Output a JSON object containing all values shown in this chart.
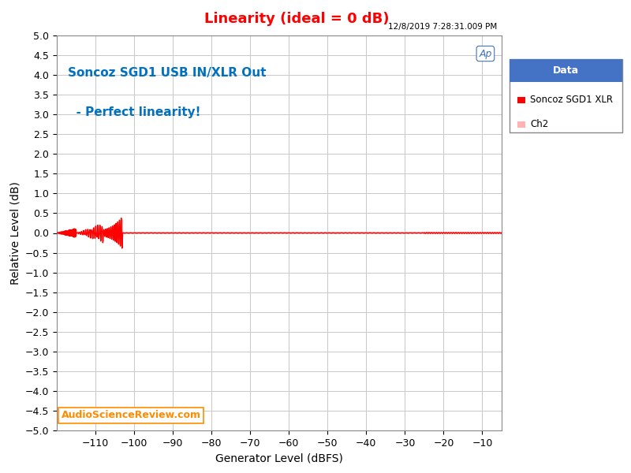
{
  "title": "Linearity (ideal = 0 dB)",
  "title_color": "#FF0000",
  "xlabel": "Generator Level (dBFS)",
  "ylabel": "Relative Level (dB)",
  "timestamp": "12/8/2019 7:28:31.009 PM",
  "annotation_line1": "Soncoz SGD1 USB IN/XLR Out",
  "annotation_line2": "  - Perfect linearity!",
  "annotation_color": "#0070C0",
  "watermark": "AudioScienceReview.com",
  "watermark_color": "#FF8C00",
  "xlim": [
    -120,
    -5
  ],
  "ylim": [
    -5.0,
    5.0
  ],
  "xticks": [
    -110,
    -100,
    -90,
    -80,
    -70,
    -60,
    -50,
    -40,
    -30,
    -20,
    -10
  ],
  "yticks": [
    -5.0,
    -4.5,
    -4.0,
    -3.5,
    -3.0,
    -2.5,
    -2.0,
    -1.5,
    -1.0,
    -0.5,
    0.0,
    0.5,
    1.0,
    1.5,
    2.0,
    2.5,
    3.0,
    3.5,
    4.0,
    4.5,
    5.0
  ],
  "legend_title": "Data",
  "legend_title_bg": "#4472C4",
  "legend_entries": [
    "Soncoz SGD1 XLR",
    "Ch2"
  ],
  "ch1_color": "#FF0000",
  "ch2_color": "#FFB3B3",
  "bg_color": "#FFFFFF",
  "plot_bg_color": "#FFFFFF",
  "grid_color": "#C8C8C8"
}
